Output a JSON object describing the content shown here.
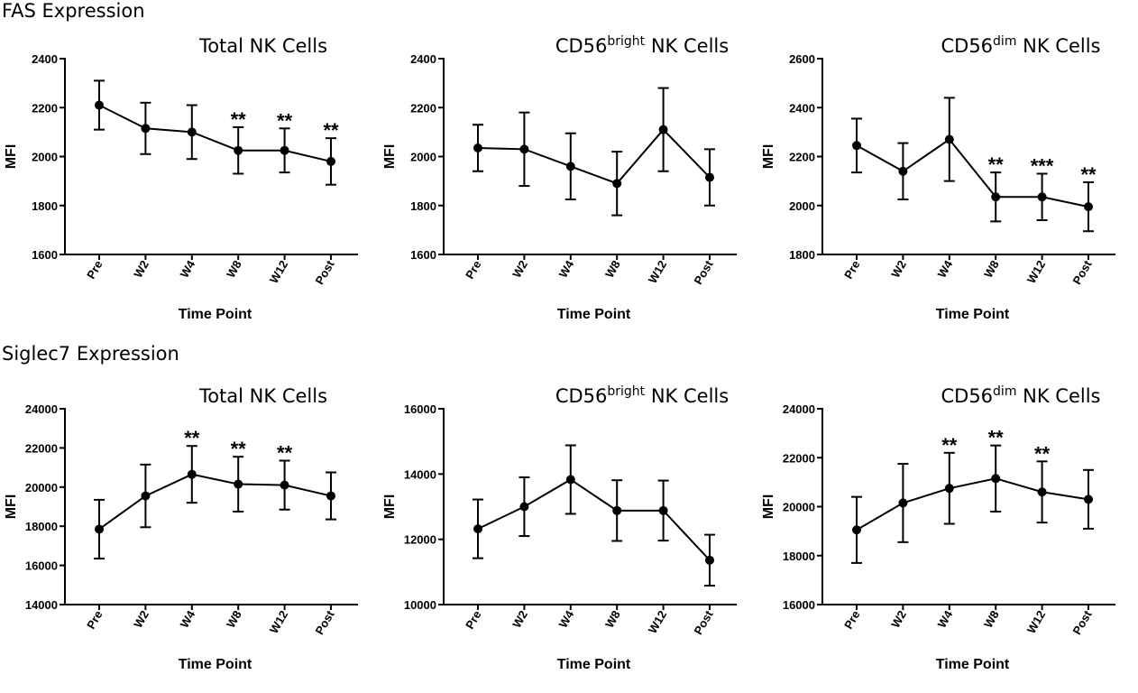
{
  "sections": {
    "fas": "FAS Expression",
    "siglec": "Siglec7 Expression"
  },
  "chart_data": [
    {
      "type": "line",
      "group": "FAS Expression",
      "title": "Total NK Cells",
      "title_base": "Total NK Cells",
      "title_sup": "",
      "title_rest": "",
      "xlabel": "Time Point",
      "ylabel": "MFI",
      "categories": [
        "Pre",
        "W2",
        "W4",
        "W8",
        "W12",
        "Post"
      ],
      "ylim": [
        1600,
        2400
      ],
      "yticks": [
        "1600",
        "1800",
        "2000",
        "2200",
        "2400"
      ],
      "values": [
        2210,
        2115,
        2100,
        2025,
        2025,
        1980
      ],
      "err": [
        100,
        105,
        110,
        95,
        90,
        95
      ],
      "significance": [
        "",
        "",
        "",
        "**",
        "**",
        "**"
      ]
    },
    {
      "type": "line",
      "group": "FAS Expression",
      "title": "CD56bright NK Cells",
      "title_base": "CD56",
      "title_sup": "bright",
      "title_rest": " NK Cells",
      "xlabel": "Time Point",
      "ylabel": "MFI",
      "categories": [
        "Pre",
        "W2",
        "W4",
        "W8",
        "W12",
        "Post"
      ],
      "ylim": [
        1600,
        2400
      ],
      "yticks": [
        "1600",
        "1800",
        "2000",
        "2200",
        "2400"
      ],
      "values": [
        2035,
        2030,
        1960,
        1890,
        2110,
        1915
      ],
      "err": [
        95,
        150,
        135,
        130,
        170,
        115
      ],
      "significance": [
        "",
        "",
        "",
        "",
        "",
        ""
      ]
    },
    {
      "type": "line",
      "group": "FAS Expression",
      "title": "CD56dim NK Cells",
      "title_base": "CD56",
      "title_sup": "dim",
      "title_rest": " NK Cells",
      "xlabel": "Time Point",
      "ylabel": "MFI",
      "categories": [
        "Pre",
        "W2",
        "W4",
        "W8",
        "W12",
        "Post"
      ],
      "ylim": [
        1800,
        2600
      ],
      "yticks": [
        "1800",
        "2000",
        "2200",
        "2400",
        "2600"
      ],
      "values": [
        2245,
        2140,
        2270,
        2035,
        2035,
        1995
      ],
      "err": [
        110,
        115,
        170,
        100,
        95,
        100
      ],
      "significance": [
        "",
        "",
        "",
        "**",
        "***",
        "**"
      ]
    },
    {
      "type": "line",
      "group": "Siglec7 Expression",
      "title": "Total NK Cells",
      "title_base": "Total NK Cells",
      "title_sup": "",
      "title_rest": "",
      "xlabel": "Time Point",
      "ylabel": "MFI",
      "categories": [
        "Pre",
        "W2",
        "W4",
        "W8",
        "W12",
        "Post"
      ],
      "ylim": [
        14000,
        24000
      ],
      "yticks": [
        "14000",
        "16000",
        "18000",
        "20000",
        "22000",
        "24000"
      ],
      "values": [
        17850,
        19550,
        20650,
        20150,
        20100,
        19550
      ],
      "err": [
        1500,
        1600,
        1450,
        1400,
        1250,
        1200
      ],
      "significance": [
        "",
        "",
        "**",
        "**",
        "**",
        ""
      ]
    },
    {
      "type": "line",
      "group": "Siglec7 Expression",
      "title": "CD56bright NK Cells",
      "title_base": "CD56",
      "title_sup": "bright",
      "title_rest": " NK Cells",
      "xlabel": "Time Point",
      "ylabel": "MFI",
      "categories": [
        "Pre",
        "W2",
        "W4",
        "W8",
        "W12",
        "Post"
      ],
      "ylim": [
        10000,
        16000
      ],
      "yticks": [
        "10000",
        "12000",
        "14000",
        "16000"
      ],
      "values": [
        12320,
        13000,
        13830,
        12880,
        12880,
        11360
      ],
      "err": [
        900,
        900,
        1050,
        930,
        920,
        780
      ],
      "significance": [
        "",
        "",
        "",
        "",
        "",
        ""
      ]
    },
    {
      "type": "line",
      "group": "Siglec7 Expression",
      "title": "CD56dim NK Cells",
      "title_base": "CD56",
      "title_sup": "dim",
      "title_rest": " NK Cells",
      "xlabel": "Time Point",
      "ylabel": "MFI",
      "categories": [
        "Pre",
        "W2",
        "W4",
        "W8",
        "W12",
        "Post"
      ],
      "ylim": [
        16000,
        24000
      ],
      "yticks": [
        "16000",
        "18000",
        "20000",
        "22000",
        "24000"
      ],
      "values": [
        19050,
        20150,
        20750,
        21150,
        20600,
        20300
      ],
      "err": [
        1350,
        1600,
        1450,
        1350,
        1250,
        1200
      ],
      "significance": [
        "",
        "",
        "**",
        "**",
        "**",
        ""
      ]
    }
  ]
}
